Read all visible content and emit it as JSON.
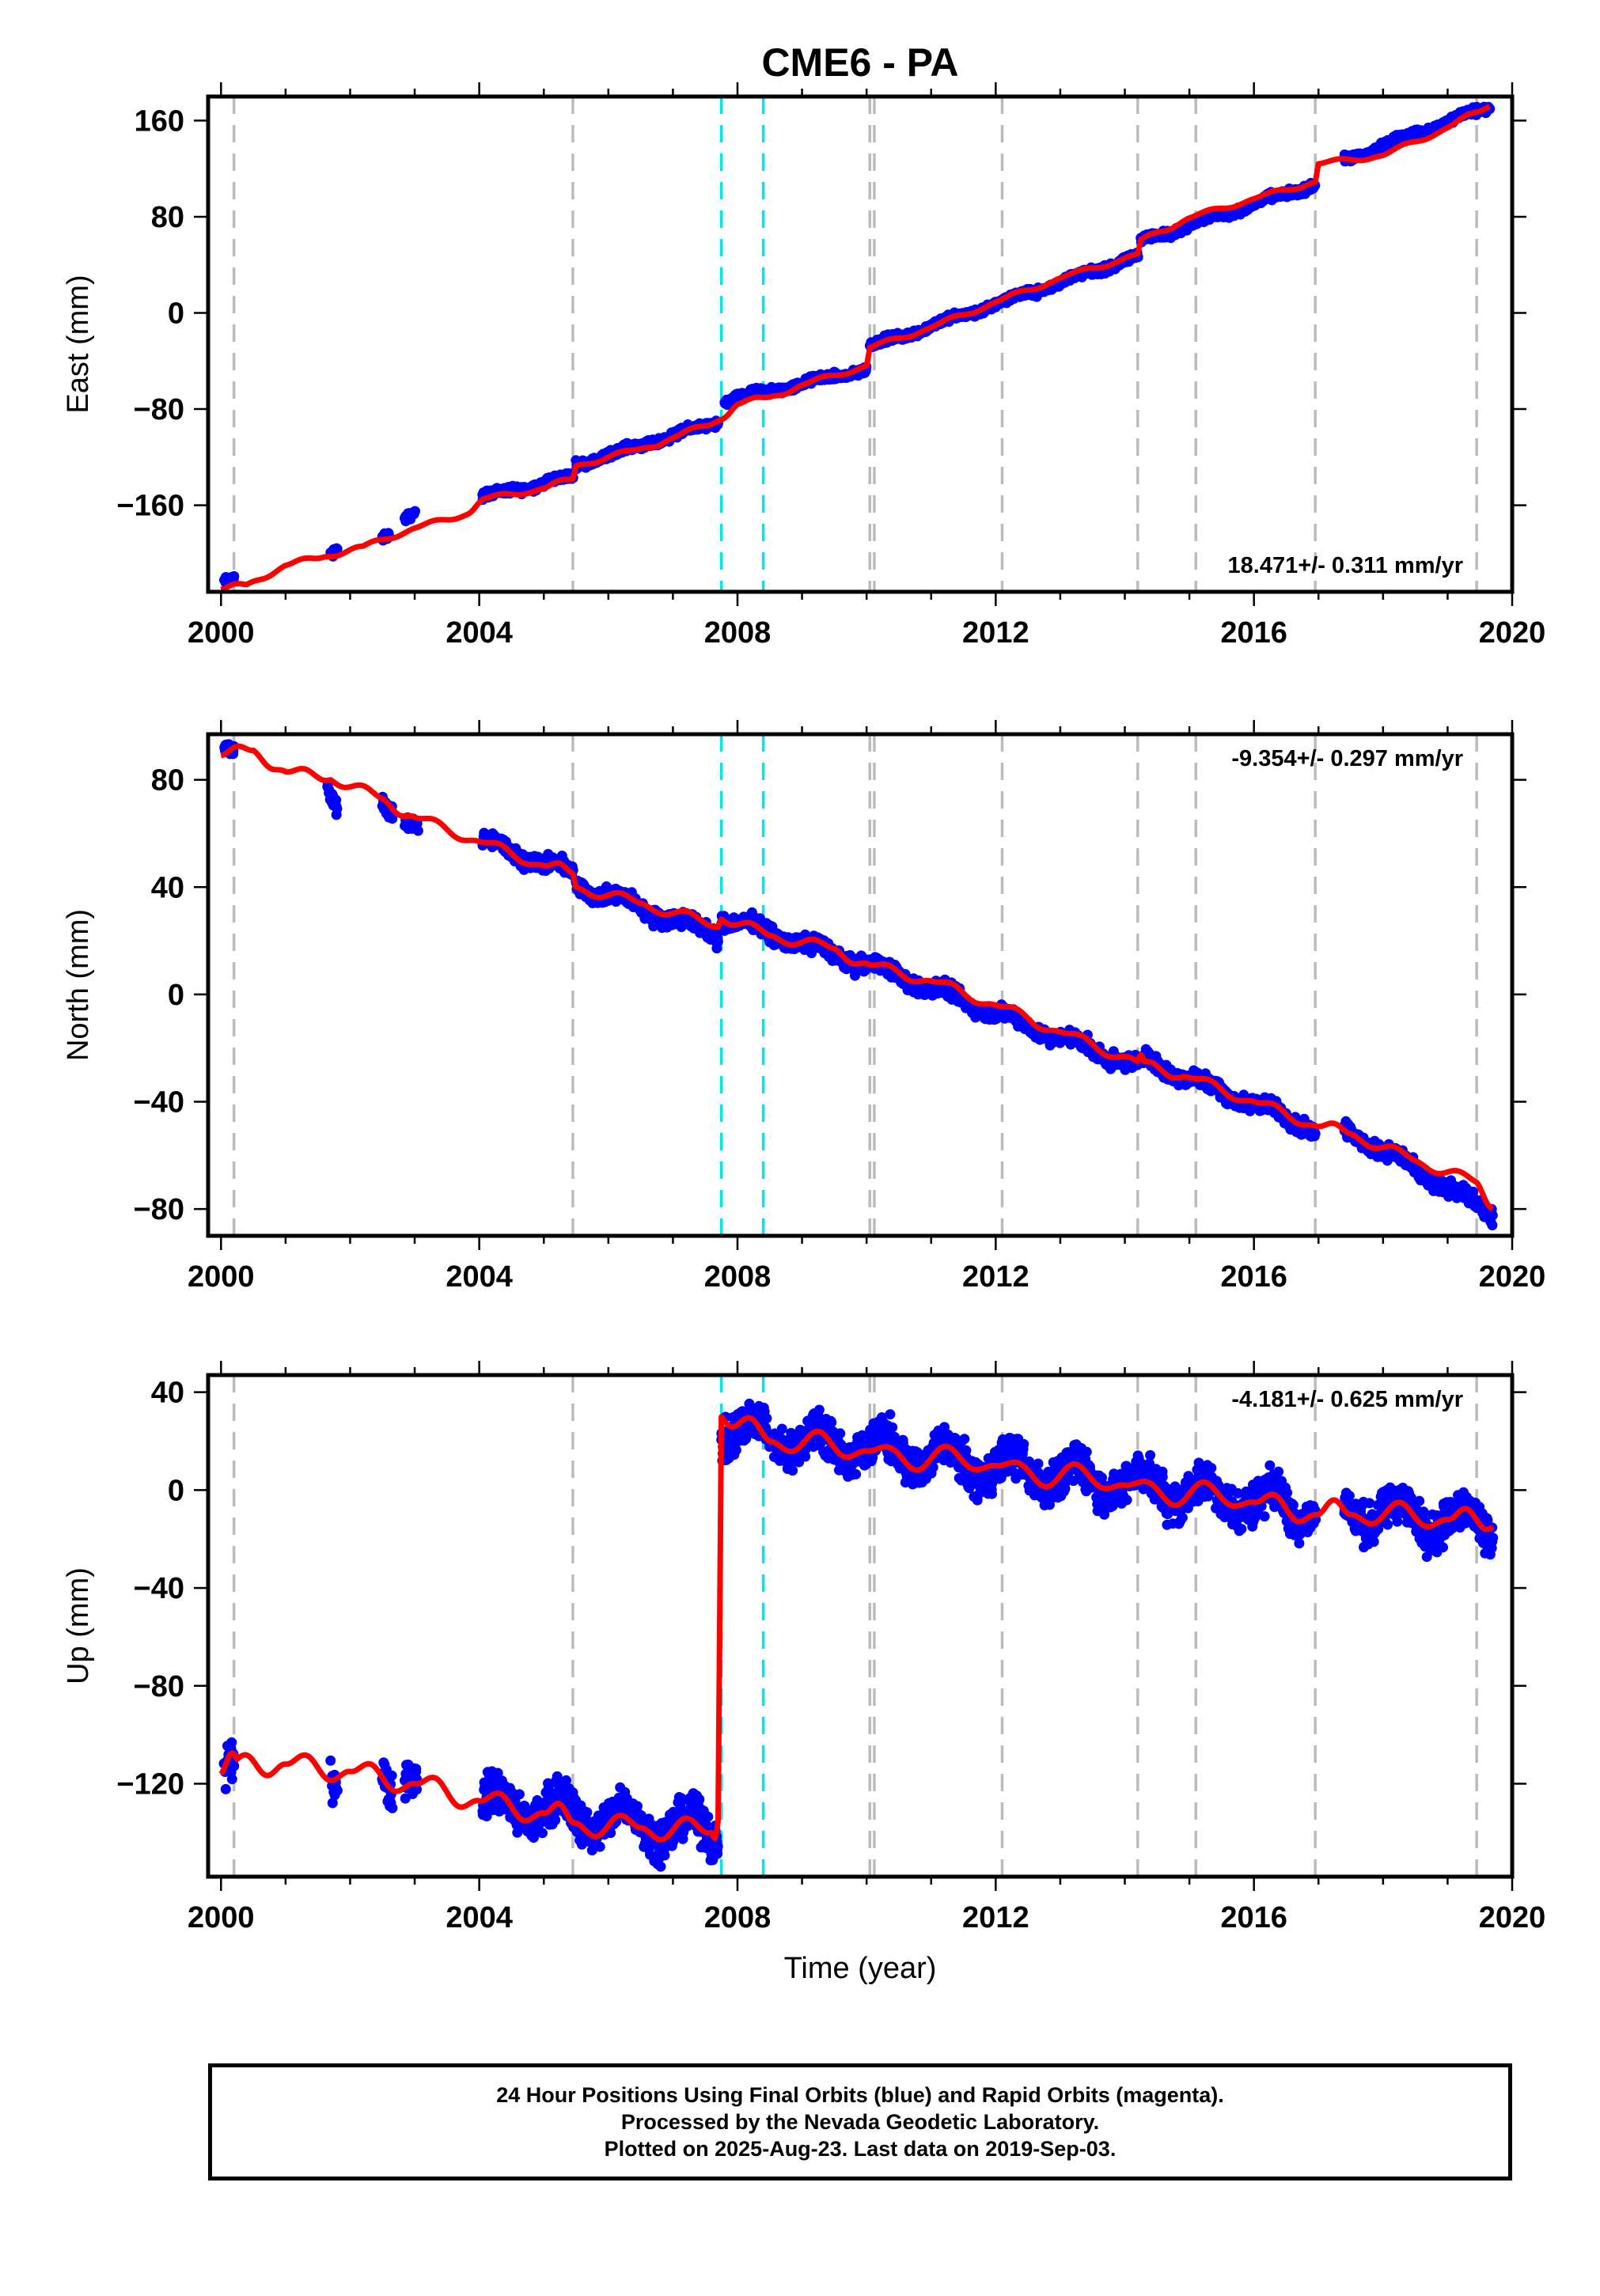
{
  "title": "CME6 - PA",
  "colors": {
    "points_final": "#0000ff",
    "model_line": "#ff0000",
    "equipment_change": "#bbbbbb",
    "event_marker": "#00e5ee",
    "axis": "#000000"
  },
  "footer": {
    "line1": "24 Hour Positions Using Final Orbits (blue) and Rapid Orbits (magenta).",
    "line2": "Processed by the Nevada Geodetic Laboratory.",
    "line3": "Plotted on 2025-Aug-23. Last data on 2019-Sep-03."
  },
  "chart_data": [
    {
      "type": "scatter",
      "panel": "east",
      "title": "CME6 - PA",
      "xlabel": "",
      "ylabel": "East (mm)",
      "xlim": [
        1999.8,
        2020.0
      ],
      "ylim": [
        -232,
        180
      ],
      "x_ticks": [
        2000,
        2004,
        2008,
        2012,
        2016,
        2020
      ],
      "y_ticks": [
        -160,
        -80,
        0,
        80,
        160
      ],
      "rate_annotation": "18.471+/- 0.311 mm/yr",
      "annotation_position": "bottom-right",
      "rate_mm_per_yr": 18.471,
      "dashed_gray_x": [
        2000.2,
        2005.45,
        2010.05,
        2010.12,
        2012.1,
        2014.2,
        2015.1,
        2016.95,
        2019.45
      ],
      "dashed_cyan_x": [
        2007.75,
        2008.4
      ],
      "series": [
        {
          "kind": "points",
          "color": "#0000ff",
          "segments": [
            {
              "x": [
                2000.05,
                2000.2
              ],
              "y": [
                -224,
                -222
              ]
            },
            {
              "x": [
                2001.7,
                2001.8
              ],
              "y": [
                -200,
                -196
              ]
            },
            {
              "x": [
                2002.5,
                2002.6
              ],
              "y": [
                -186,
                -184
              ]
            },
            {
              "x": [
                2002.85,
                2003.0
              ],
              "y": [
                -170,
                -166
              ]
            },
            {
              "x": [
                2004.05,
                2005.45
              ],
              "y": [
                -153,
                -136
              ]
            },
            {
              "x": [
                2005.5,
                2007.7
              ],
              "y": [
                -126,
                -91
              ]
            },
            {
              "x": [
                2007.8,
                2010.0
              ],
              "y": [
                -73,
                -47
              ]
            },
            {
              "x": [
                2010.05,
                2014.2
              ],
              "y": [
                -28,
                47
              ]
            },
            {
              "x": [
                2014.25,
                2016.95
              ],
              "y": [
                60,
                107
              ]
            },
            {
              "x": [
                2017.4,
                2019.65
              ],
              "y": [
                127,
                172
              ]
            }
          ]
        },
        {
          "kind": "line",
          "color": "#ff0000",
          "x": [
            2000.0,
            2000.4,
            2001.0,
            2001.6,
            2002.2,
            2003.0,
            2003.8,
            2004.05,
            2005.0,
            2005.45,
            2005.5,
            2006.5,
            2007.0,
            2007.7,
            2008.0,
            2008.5,
            2009.0,
            2010.0,
            2010.05,
            2011.0,
            2012.0,
            2013.0,
            2014.2,
            2014.25,
            2015.0,
            2016.0,
            2016.95,
            2017.0,
            2018.0,
            2019.0,
            2019.65
          ],
          "y": [
            -230,
            -226,
            -210,
            -203,
            -194,
            -179,
            -168,
            -155,
            -146,
            -138,
            -127,
            -113,
            -104,
            -90,
            -76,
            -70,
            -60,
            -44,
            -29,
            -12,
            9,
            29,
            49,
            61,
            79,
            95,
            109,
            124,
            131,
            154,
            172
          ]
        }
      ]
    },
    {
      "type": "scatter",
      "panel": "north",
      "xlabel": "",
      "ylabel": "North (mm)",
      "xlim": [
        1999.8,
        2020.0
      ],
      "ylim": [
        -90,
        97
      ],
      "x_ticks": [
        2000,
        2004,
        2008,
        2012,
        2016,
        2020
      ],
      "y_ticks": [
        -80,
        -40,
        0,
        40,
        80
      ],
      "rate_annotation": "-9.354+/- 0.297 mm/yr",
      "annotation_position": "top-right",
      "rate_mm_per_yr": -9.354,
      "dashed_gray_x": [
        2000.2,
        2005.45,
        2010.05,
        2010.12,
        2012.1,
        2014.2,
        2015.1,
        2016.95,
        2019.45
      ],
      "dashed_cyan_x": [
        2007.75,
        2008.4
      ],
      "series": [
        {
          "kind": "points",
          "color": "#0000ff",
          "segments": [
            {
              "x": [
                2000.05,
                2000.2
              ],
              "y": [
                91,
                89
              ]
            },
            {
              "x": [
                2001.65,
                2001.8
              ],
              "y": [
                78,
                71
              ]
            },
            {
              "x": [
                2002.5,
                2002.65
              ],
              "y": [
                72,
                68
              ]
            },
            {
              "x": [
                2002.85,
                2003.05
              ],
              "y": [
                66,
                63
              ]
            },
            {
              "x": [
                2004.05,
                2005.45
              ],
              "y": [
                57,
                45
              ]
            },
            {
              "x": [
                2005.5,
                2007.7
              ],
              "y": [
                41,
                22
              ]
            },
            {
              "x": [
                2007.75,
                2010.0
              ],
              "y": [
                29,
                11
              ]
            },
            {
              "x": [
                2010.05,
                2014.2
              ],
              "y": [
                11,
                -27
              ]
            },
            {
              "x": [
                2014.25,
                2016.95
              ],
              "y": [
                -24,
                -50
              ]
            },
            {
              "x": [
                2017.4,
                2019.7
              ],
              "y": [
                -50,
                -82
              ]
            }
          ]
        },
        {
          "kind": "line",
          "color": "#ff0000",
          "x": [
            2000.0,
            2000.5,
            2001.0,
            2001.7,
            2002.5,
            2003.0,
            2004.0,
            2005.0,
            2005.45,
            2005.5,
            2006.5,
            2007.7,
            2007.75,
            2008.5,
            2009.5,
            2010.05,
            2011.0,
            2012.0,
            2013.0,
            2014.2,
            2014.3,
            2015.0,
            2016.0,
            2016.95,
            2017.5,
            2018.5,
            2019.45,
            2019.7
          ],
          "y": [
            89,
            91,
            83,
            80,
            73,
            66,
            57,
            48,
            45,
            40,
            34,
            25,
            28,
            22,
            17,
            11,
            5,
            -4,
            -14,
            -25,
            -25,
            -31,
            -40,
            -49,
            -52,
            -62,
            -70,
            -80
          ]
        }
      ]
    },
    {
      "type": "scatter",
      "panel": "up",
      "xlabel": "Time (year)",
      "ylabel": "Up (mm)",
      "xlim": [
        1999.8,
        2020.0
      ],
      "ylim": [
        -158,
        47
      ],
      "x_ticks": [
        2000,
        2004,
        2008,
        2012,
        2016,
        2020
      ],
      "y_ticks": [
        -120,
        -80,
        -40,
        0,
        40
      ],
      "rate_annotation": "-4.181+/- 0.625 mm/yr",
      "annotation_position": "top-right",
      "rate_mm_per_yr": -4.181,
      "dashed_gray_x": [
        2000.2,
        2005.45,
        2010.05,
        2010.12,
        2012.1,
        2014.2,
        2015.1,
        2016.95,
        2019.45
      ],
      "dashed_cyan_x": [
        2007.75,
        2008.4
      ],
      "series": [
        {
          "kind": "points",
          "color": "#0000ff",
          "segments": [
            {
              "x": [
                2000.05,
                2000.2
              ],
              "y": [
                -115,
                -118
              ]
            },
            {
              "x": [
                2001.7,
                2001.8
              ],
              "y": [
                -110,
                -114
              ]
            },
            {
              "x": [
                2002.5,
                2002.65
              ],
              "y": [
                -116,
                -118
              ]
            },
            {
              "x": [
                2002.85,
                2003.05
              ],
              "y": [
                -113,
                -120
              ]
            },
            {
              "x": [
                2004.05,
                2007.7
              ],
              "y": [
                -128,
                -140
              ]
            },
            {
              "x": [
                2007.75,
                2016.95
              ],
              "y": [
                25,
                -8
              ]
            },
            {
              "x": [
                2017.4,
                2019.7
              ],
              "y": [
                -8,
                -14
              ]
            }
          ]
        },
        {
          "kind": "line",
          "color": "#ff0000",
          "x": [
            2000.0,
            2000.25,
            2001.0,
            2002.0,
            2003.0,
            2004.0,
            2005.0,
            2005.45,
            2006.5,
            2007.6,
            2007.7,
            2007.75,
            2008.5,
            2010.0,
            2012.0,
            2014.0,
            2016.0,
            2016.95,
            2017.5,
            2019.0,
            2019.7
          ],
          "y": [
            -116,
            -110,
            -112,
            -115,
            -120,
            -127,
            -132,
            -136,
            -138,
            -140,
            -135,
            30,
            20,
            16,
            10,
            2,
            -5,
            -10,
            -10,
            -12,
            -15
          ]
        }
      ]
    }
  ]
}
